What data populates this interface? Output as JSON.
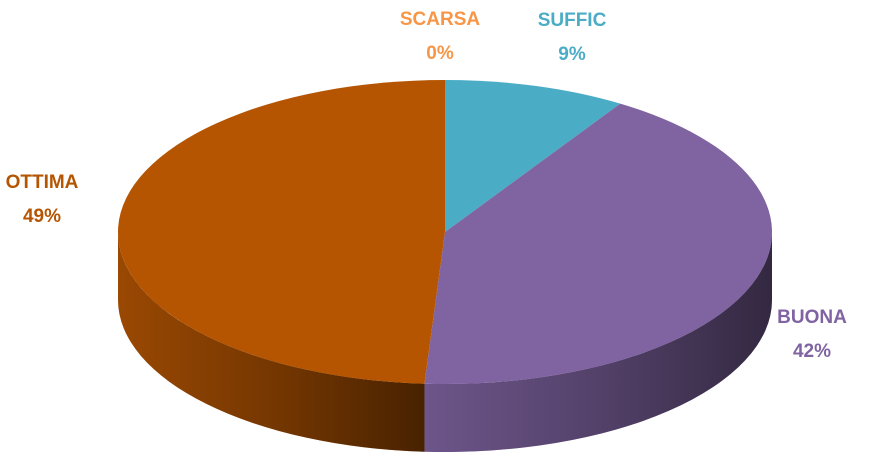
{
  "chart_data": {
    "type": "pie",
    "three_d": true,
    "categories": [
      "SCARSA",
      "SUFFIC",
      "BUONA",
      "OTTIMA"
    ],
    "values": [
      0,
      9,
      42,
      49
    ],
    "value_labels": [
      "0%",
      "9%",
      "42%",
      "49%"
    ],
    "colors": [
      "#f79646",
      "#4bacc6",
      "#8064a2",
      "#b55502"
    ]
  }
}
